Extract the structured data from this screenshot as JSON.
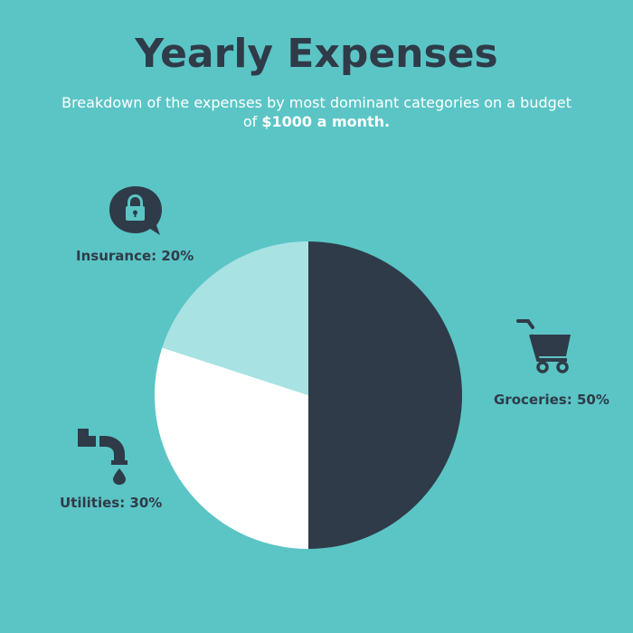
{
  "colors": {
    "background": "#5bc5c6",
    "dark": "#2f3b48",
    "white": "#ffffff",
    "light": "#a9e2e3"
  },
  "header": {
    "title": "Yearly Expenses",
    "subtitle_prefix": "Breakdown of the expenses by most dominant categories on a budget of ",
    "subtitle_bold": "$1000 a month."
  },
  "icons": {
    "insurance": "lock-speech-bubble-icon",
    "groceries": "shopping-cart-icon",
    "utilities": "water-pipe-drip-icon"
  },
  "chart_data": {
    "type": "pie",
    "title": "Yearly Expenses",
    "slices": [
      {
        "label": "Groceries",
        "value": 50,
        "display": "Groceries: 50%",
        "color": "#2f3b48"
      },
      {
        "label": "Utilities",
        "value": 30,
        "display": "Utilities: 30%",
        "color": "#ffffff"
      },
      {
        "label": "Insurance",
        "value": 20,
        "display": "Insurance: 20%",
        "color": "#a9e2e3"
      }
    ],
    "legend": "none"
  }
}
